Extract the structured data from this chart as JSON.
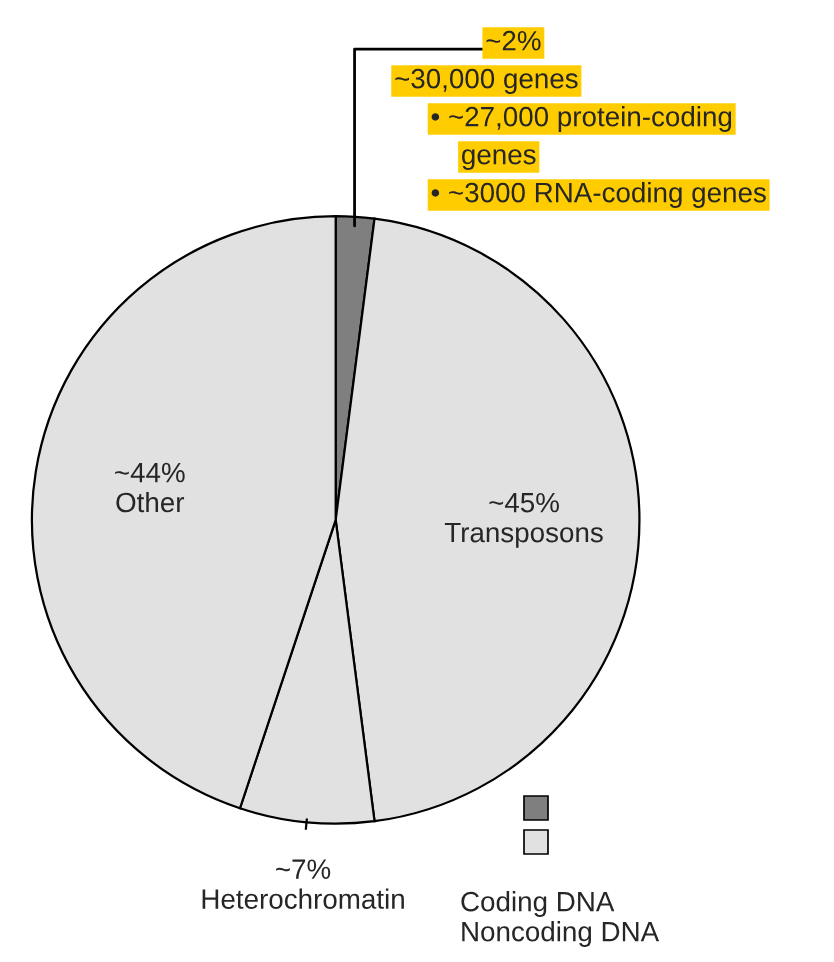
{
  "chart_data": {
    "type": "pie",
    "categories": [
      null,
      "Transposons",
      "Heterochromatin",
      "Other"
    ],
    "values": [
      2,
      45,
      7,
      44
    ],
    "value_labels": [
      "~2%",
      "~45%",
      "~7%",
      "~44%"
    ],
    "colors": [
      "#7f7f7f",
      "#e1e1e1",
      "#e1e1e1",
      "#e1e1e1"
    ],
    "annotations": [
      "~30,000 genes",
      "• ~27,000 protein-coding genes",
      "• ~3000 RNA-coding genes",
      "Coding DNA",
      "Noncoding DNA"
    ]
  }
}
